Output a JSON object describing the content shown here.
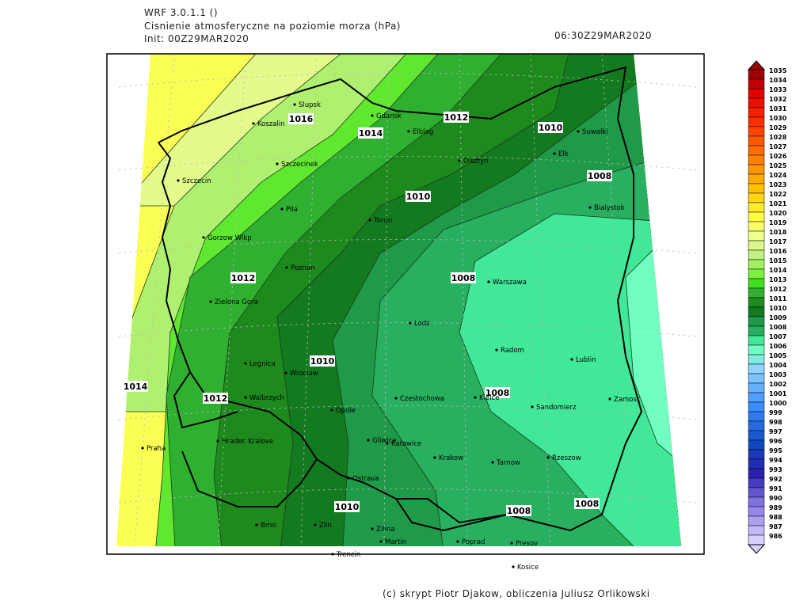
{
  "header": {
    "model": "WRF 3.0.1.1 ()",
    "title": "Cisnienie atmosferyczne na poziomie morza (hPa)",
    "init": "Init: 00Z29MAR2020",
    "valid": "06:30Z29MAR2020"
  },
  "footer": "(c) skrypt Piotr Djakow, obliczenia Juliusz Orlikowski",
  "cities": [
    "Slupsk",
    "Koszalin",
    "Gdansk",
    "Elblag",
    "Olsztyn",
    "Suwalki",
    "Elk",
    "Szczecinek",
    "Szczecin",
    "Bialystok",
    "Pila",
    "Torun",
    "Gorzow Wlkp",
    "Poznan",
    "Warszawa",
    "Zielona Gora",
    "Lodz",
    "Radom",
    "Lublin",
    "Legnica",
    "Wroclaw",
    "Walbrzych",
    "Opole",
    "Czestochowa",
    "Kielce",
    "Sandomierz",
    "Zamosc",
    "Hradec Kralove",
    "Gliwice",
    "Katowice",
    "Praha",
    "Krakow",
    "Tarnow",
    "Rzeszow",
    "Ostrava",
    "Brno",
    "Zlin",
    "Zilina",
    "Martin",
    "Poprad",
    "Presov",
    "Trencin",
    "Kosice"
  ],
  "isobar_labels": [
    1016,
    1014,
    1012,
    1010,
    1008,
    1010,
    1012,
    1008,
    1010,
    1014,
    1012,
    1008,
    1010,
    1008,
    1008
  ],
  "colorbar": [
    1035,
    1034,
    1033,
    1032,
    1031,
    1030,
    1029,
    1028,
    1027,
    1026,
    1025,
    1024,
    1023,
    1022,
    1021,
    1020,
    1019,
    1018,
    1017,
    1016,
    1015,
    1014,
    1013,
    1012,
    1011,
    1010,
    1009,
    1008,
    1007,
    1006,
    1005,
    1004,
    1003,
    1002,
    1001,
    1000,
    999,
    998,
    997,
    996,
    995,
    994,
    993,
    992,
    991,
    990,
    989,
    988,
    987,
    986
  ]
}
